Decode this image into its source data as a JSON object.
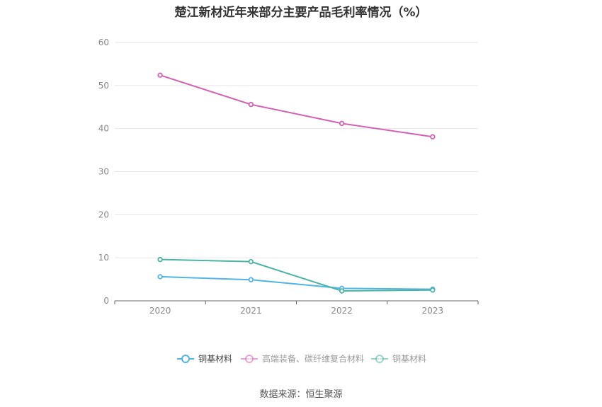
{
  "title": "楚江新材近年来部分主要产品毛利率情况（%）",
  "source": "数据来源：恒生聚源",
  "chart_data": {
    "type": "line",
    "title": "楚江新材近年来部分主要产品毛利率情况（%）",
    "x": [
      "2020",
      "2021",
      "2022",
      "2023"
    ],
    "ylim": [
      0,
      60
    ],
    "yticks": [
      "0",
      "10",
      "20",
      "30",
      "40",
      "50",
      "60"
    ],
    "grid": true,
    "legend_position": "bottom",
    "series": [
      {
        "name": "铜基材料",
        "color": "#4fb5e8",
        "values": [
          5.6,
          4.9,
          2.9,
          2.7
        ]
      },
      {
        "name": "高端装备、碳纤维复合材料",
        "color": "#d462b0",
        "values": [
          52.4,
          45.6,
          41.2,
          38.1
        ]
      },
      {
        "name": "铜基材料",
        "color": "#4ab5a3",
        "values": [
          9.6,
          9.1,
          2.3,
          2.5
        ]
      }
    ]
  }
}
